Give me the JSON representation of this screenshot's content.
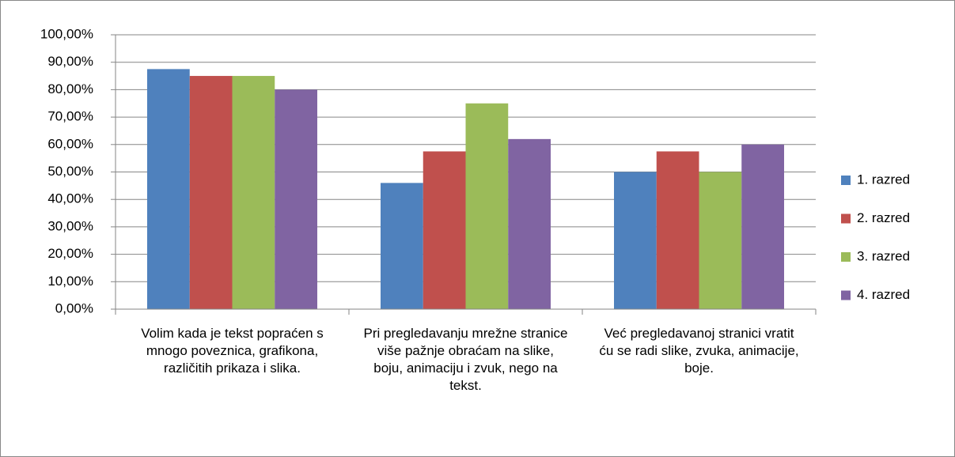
{
  "chart_data": {
    "type": "bar",
    "categories": [
      "Volim kada je tekst popraćen s mnogo poveznica, grafikona, različitih prikaza i slika.",
      "Pri pregledavanju mrežne stranice više pažnje obraćam na slike, boju, animaciju i zvuk, nego na tekst.",
      "Već pregledavanoj stranici vratit ću se radi slike, zvuka, animacije, boje."
    ],
    "series": [
      {
        "name": "1. razred",
        "color": "#4f81bd",
        "values": [
          87.5,
          46,
          50
        ]
      },
      {
        "name": "2. razred",
        "color": "#c0504d",
        "values": [
          85,
          57.5,
          57.5
        ]
      },
      {
        "name": "3. razred",
        "color": "#9bbb59",
        "values": [
          85,
          75,
          50
        ]
      },
      {
        "name": "4. razred",
        "color": "#8064a2",
        "values": [
          80,
          62,
          60
        ]
      }
    ],
    "ylim": [
      0,
      100
    ],
    "yticks": [
      {
        "value": 0,
        "label": "0,00%"
      },
      {
        "value": 10,
        "label": "10,00%"
      },
      {
        "value": 20,
        "label": "20,00%"
      },
      {
        "value": 30,
        "label": "30,00%"
      },
      {
        "value": 40,
        "label": "40,00%"
      },
      {
        "value": 50,
        "label": "50,00%"
      },
      {
        "value": 60,
        "label": "60,00%"
      },
      {
        "value": 70,
        "label": "70,00%"
      },
      {
        "value": 80,
        "label": "80,00%"
      },
      {
        "value": 90,
        "label": "90,00%"
      },
      {
        "value": 100,
        "label": "100,00%"
      }
    ],
    "grid": true,
    "legend": "right"
  }
}
